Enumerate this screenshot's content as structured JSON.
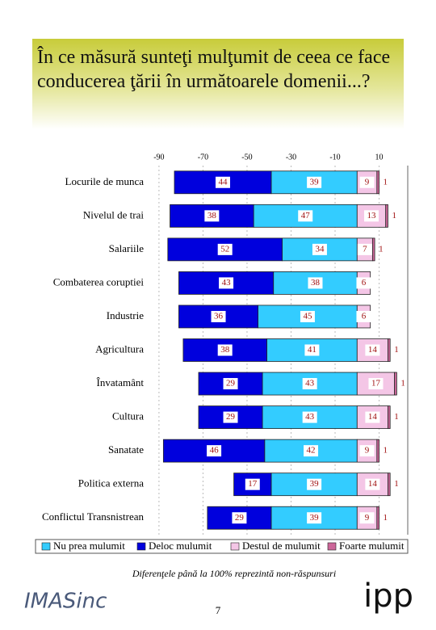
{
  "chart_data": {
    "type": "diverging-bar",
    "title": "În ce măsură sunteţi mulţumit de ceea ce face conducerea ţării în următoarele domenii...?",
    "categories": [
      "Locurile de munca",
      "Nivelul de trai",
      "Salariile",
      "Combaterea coruptiei",
      "Industrie",
      "Agricultura",
      "Învatamânt",
      "Cultura",
      "Sanatate",
      "Politica externa",
      "Conflictul Transnistrean"
    ],
    "series": [
      {
        "name": "Nu prea mulumit",
        "color": "#33ccff",
        "values": [
          -39,
          -47,
          -34,
          -38,
          -45,
          -41,
          -43,
          -43,
          -42,
          -39,
          -39
        ],
        "value_labels": [
          "39",
          "47",
          "34",
          "38",
          "45",
          "41",
          "43",
          "43",
          "42",
          "39",
          "39"
        ]
      },
      {
        "name": "Deloc mulumit",
        "color": "#0000dd",
        "values": [
          -44,
          -38,
          -52,
          -43,
          -36,
          -38,
          -29,
          -29,
          -46,
          -17,
          -29
        ],
        "value_labels": [
          "44",
          "38",
          "52",
          "43",
          "36",
          "38",
          "29",
          "29",
          "46",
          "17",
          "29"
        ]
      },
      {
        "name": "Destul de mulumit",
        "color": "#f4c6e6",
        "values": [
          9,
          13,
          7,
          6,
          6,
          14,
          17,
          14,
          9,
          14,
          9
        ]
      },
      {
        "name": "Foarte mulumit",
        "color": "#cc6699",
        "values": [
          1,
          1,
          1,
          null,
          null,
          1,
          1,
          1,
          1,
          1,
          1
        ]
      }
    ],
    "xlim": [
      -94,
      23
    ],
    "xticks": [
      -90,
      -70,
      -50,
      -30,
      -10,
      10
    ],
    "grid": true,
    "note": "Diferenţele până la 100% reprezintă non-răspunsuri",
    "logo_left": "IMASinc",
    "page_number": "7",
    "logo_right": "ipp"
  }
}
